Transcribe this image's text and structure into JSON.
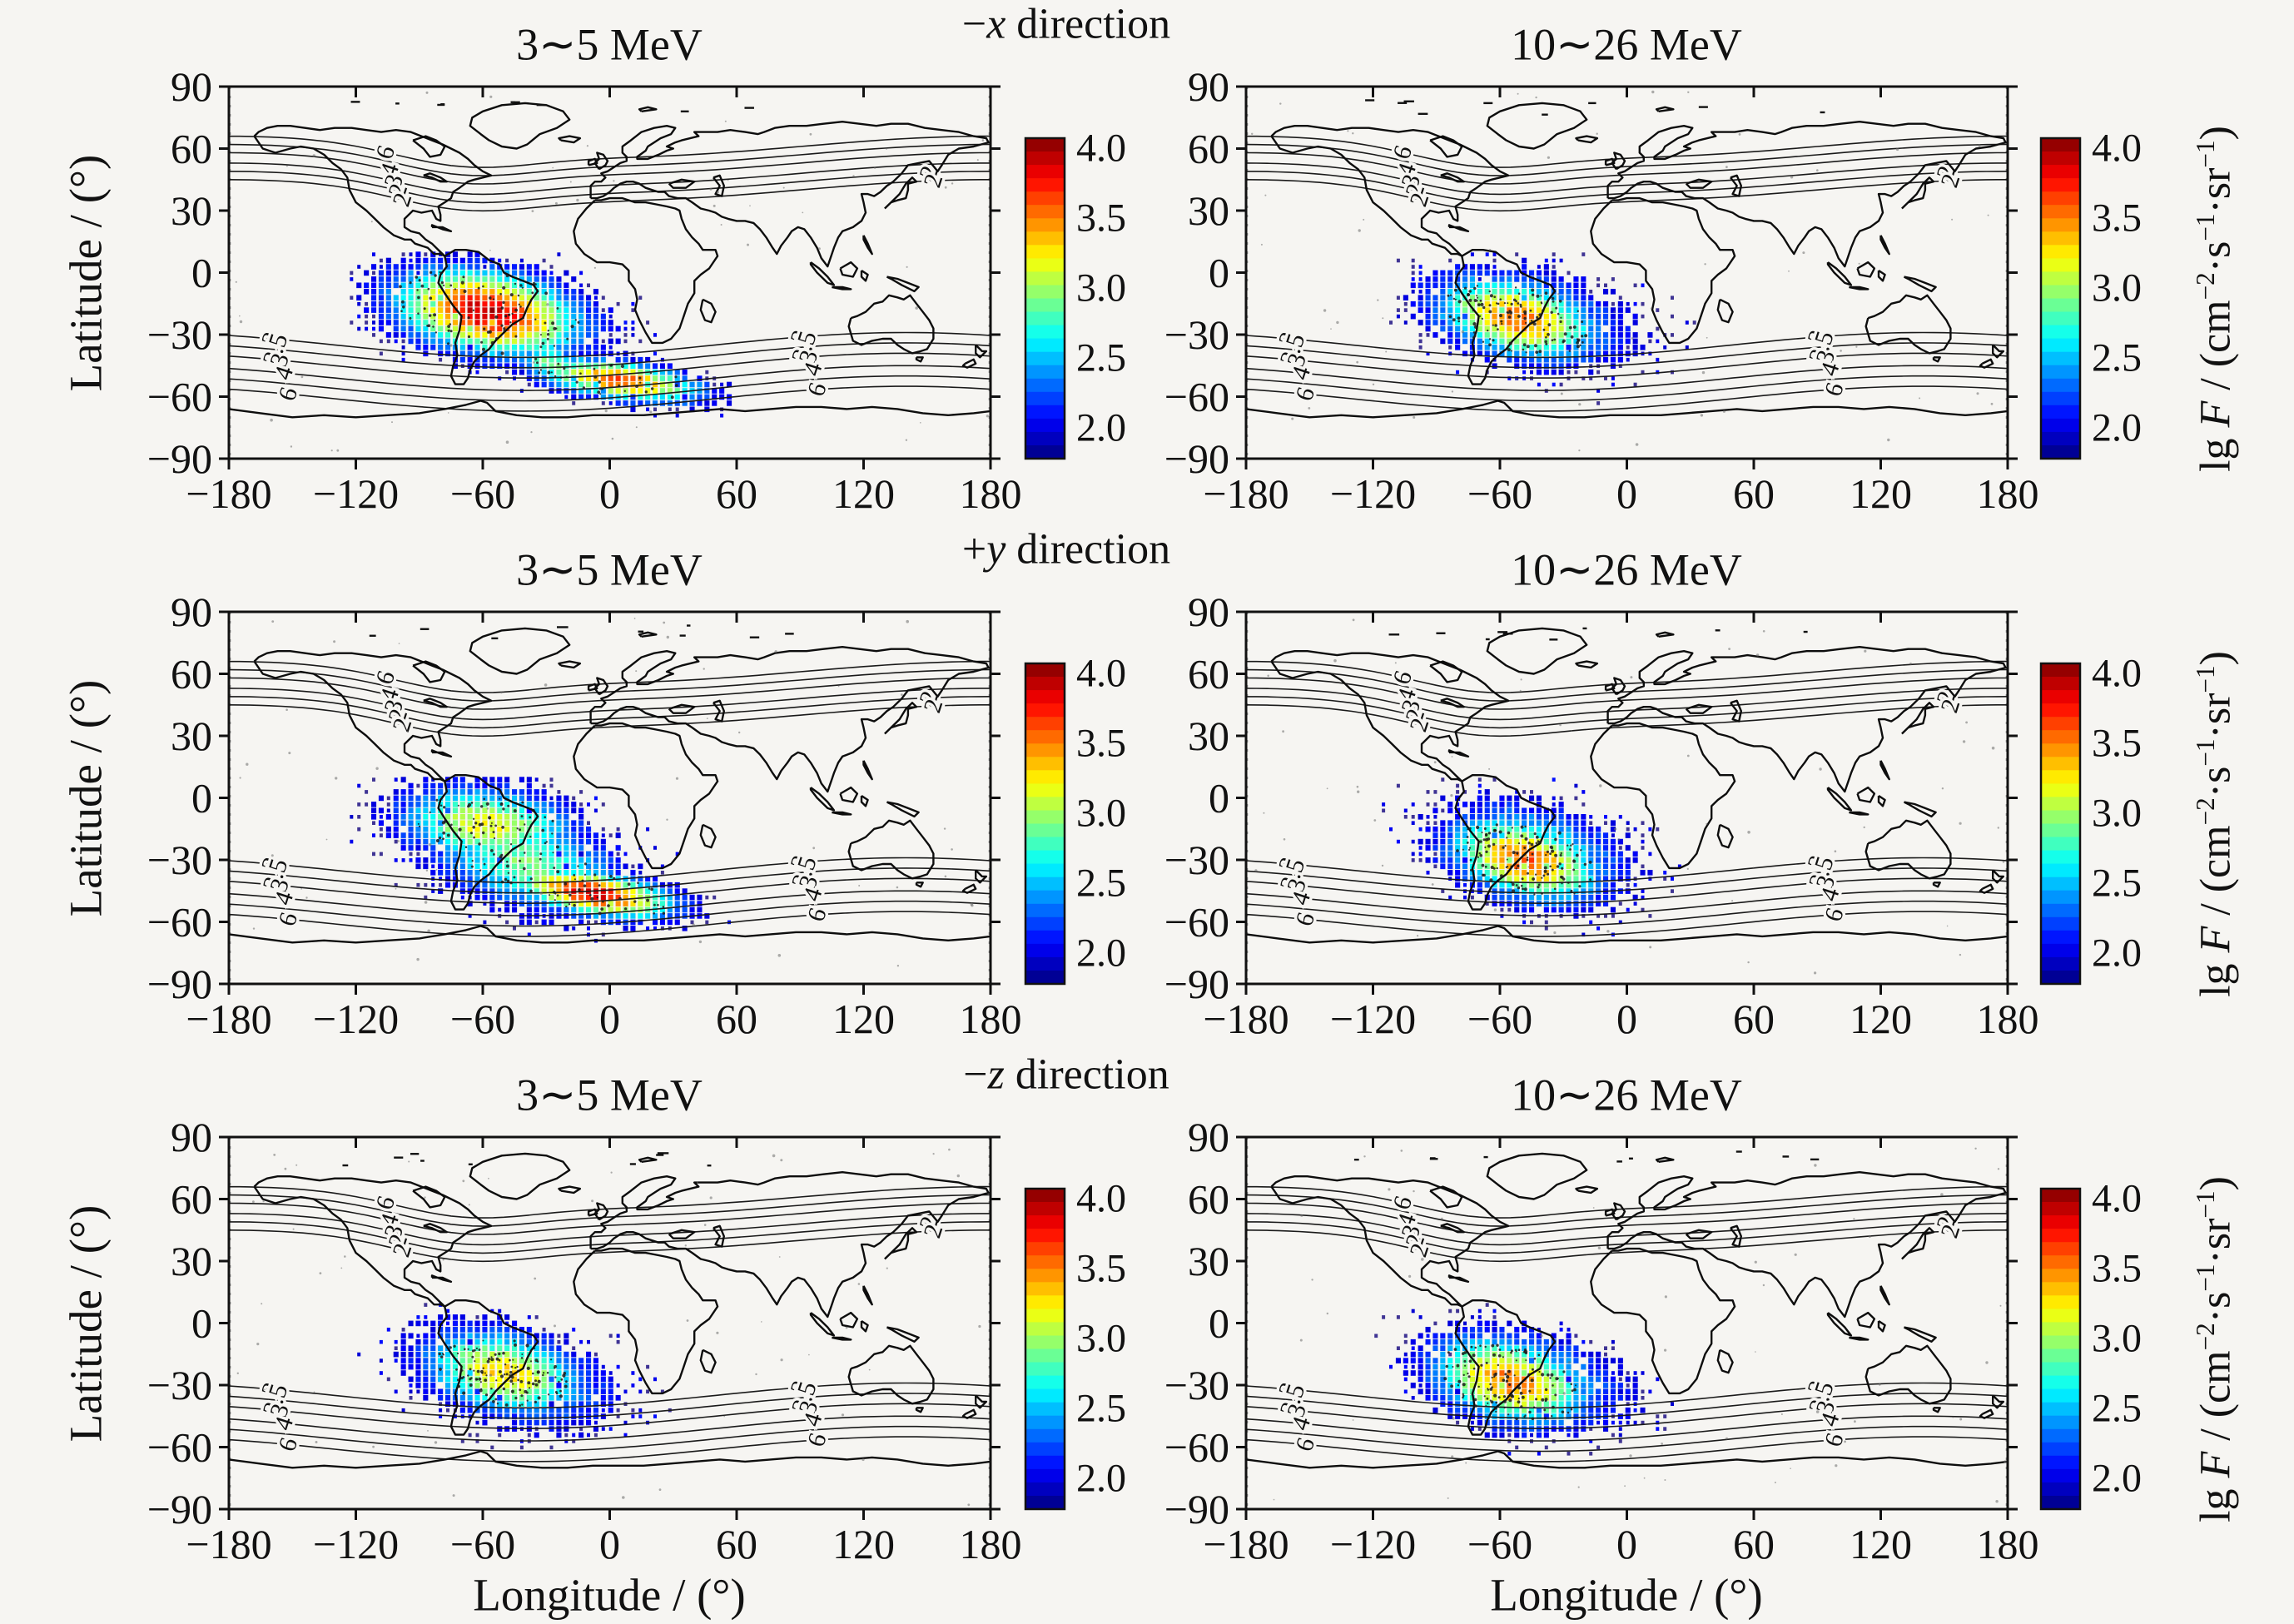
{
  "rows": [
    {
      "direction_tokens": [
        {
          "t": "−"
        },
        {
          "t": "x",
          "i": 1
        },
        {
          "t": " direction"
        }
      ],
      "panels": [
        {
          "title": "3∼5 MeV"
        },
        {
          "title": "10∼26 MeV"
        }
      ]
    },
    {
      "direction_tokens": [
        {
          "t": "+"
        },
        {
          "t": "y",
          "i": 1
        },
        {
          "t": " direction"
        }
      ],
      "panels": [
        {
          "title": "3∼5 MeV"
        },
        {
          "title": "10∼26 MeV"
        }
      ]
    },
    {
      "direction_tokens": [
        {
          "t": "−"
        },
        {
          "t": "z",
          "i": 1
        },
        {
          "t": " direction"
        }
      ],
      "panels": [
        {
          "title": "3∼5 MeV"
        },
        {
          "title": "10∼26 MeV"
        }
      ]
    }
  ],
  "axes": {
    "x_label": "Longitude / (°)",
    "y_label": "Latitude / (°)",
    "x_tick_labels": [
      "−180",
      "−120",
      "−60",
      "0",
      "60",
      "120",
      "180"
    ],
    "x_tick_values": [
      -180,
      -120,
      -60,
      0,
      60,
      120,
      180
    ],
    "y_tick_labels": [
      "90",
      "60",
      "30",
      "0",
      "−30",
      "−60",
      "−90"
    ],
    "y_tick_values": [
      90,
      60,
      30,
      0,
      -30,
      -60,
      -90
    ],
    "lon_range": [
      -180,
      180
    ],
    "lat_range": [
      -90,
      90
    ]
  },
  "colorbar": {
    "tick_labels": [
      "4.0",
      "3.5",
      "3.0",
      "2.5",
      "2.0"
    ],
    "tick_values": [
      4.0,
      3.5,
      3.0,
      2.5,
      2.0
    ],
    "drawn_range": [
      1.78,
      4.07
    ],
    "colormap": "jet",
    "top_color": "#7f0000",
    "bottom_color": "#2c2e8e",
    "unit_tokens": [
      {
        "t": "lg "
      },
      {
        "t": "F",
        "i": 1
      },
      {
        "t": " / (cm"
      },
      {
        "t": "−2",
        "sup": 1
      },
      {
        "t": "·s"
      },
      {
        "t": "−1",
        "sup": 1
      },
      {
        "t": "·sr"
      },
      {
        "t": "−1",
        "sup": 1
      },
      {
        "t": ")"
      }
    ]
  },
  "contours": {
    "south_values": [
      2,
      2.5,
      3,
      4,
      5,
      6
    ],
    "north_values": [
      6,
      5,
      4,
      3,
      2.5,
      2
    ],
    "label_sets": [
      {
        "name": "south-left",
        "lon": -160,
        "labels": [
          "2",
          "2.5",
          "3",
          "4",
          "6"
        ],
        "line_idx": [
          0,
          1,
          2,
          3,
          5
        ]
      },
      {
        "name": "south-right",
        "lon": 90,
        "labels": [
          "2",
          "2.5",
          "3",
          "4",
          "6"
        ],
        "line_idx": [
          0,
          1,
          2,
          3,
          5
        ]
      },
      {
        "name": "north-left",
        "lon": -106,
        "labels": [
          "6",
          "4",
          "3",
          "2",
          "2"
        ],
        "line_idx": [
          0,
          2,
          3,
          4,
          5
        ]
      },
      {
        "name": "north-right",
        "lon": 151,
        "labels": [
          "2",
          "2"
        ],
        "line_idx": [
          4,
          5
        ]
      }
    ]
  },
  "chart_data": [
    {
      "type": "heatmap",
      "direction": "−x direction",
      "energy": "3∼5 MeV",
      "value_label": "lg F / (cm−2·s−1·sr−1)",
      "color_range": [
        2.0,
        4.0
      ],
      "peak_lgF": 3.9,
      "seed": 101,
      "components": [
        {
          "name": "saa-main",
          "lon": -58,
          "lat": -19,
          "sigma_lon": 34,
          "sigma_lat": 15,
          "tilt": -10,
          "peak": 3.95
        },
        {
          "name": "southeast-band",
          "lon": 5,
          "lat": -52,
          "sigma_lon": 30,
          "sigma_lat": 7,
          "tilt": -8,
          "peak": 3.6
        },
        {
          "name": "bridge",
          "lon": -28,
          "lat": -44,
          "sigma_lon": 14,
          "sigma_lat": 8,
          "tilt": -25,
          "peak": 2.9
        }
      ]
    },
    {
      "type": "heatmap",
      "direction": "−x direction",
      "energy": "10∼26 MeV",
      "value_label": "lg F / (cm−2·s−1·sr−1)",
      "color_range": [
        2.0,
        4.0
      ],
      "peak_lgF": 3.5,
      "seed": 202,
      "components": [
        {
          "name": "saa-main",
          "lon": -52,
          "lat": -22,
          "sigma_lon": 30,
          "sigma_lat": 14,
          "tilt": -14,
          "peak": 3.55
        },
        {
          "name": "halo",
          "lon": -46,
          "lat": -22,
          "sigma_lon": 36,
          "sigma_lat": 17,
          "tilt": -12,
          "peak": 2.75
        }
      ]
    },
    {
      "type": "heatmap",
      "direction": "+y direction",
      "energy": "3∼5 MeV",
      "value_label": "lg F / (cm−2·s−1·sr−1)",
      "color_range": [
        2.0,
        4.0
      ],
      "peak_lgF": 3.85,
      "seed": 303,
      "components": [
        {
          "name": "upper-lobe",
          "lon": -58,
          "lat": -13,
          "sigma_lon": 32,
          "sigma_lat": 14,
          "tilt": -6,
          "peak": 3.2
        },
        {
          "name": "south-band",
          "lon": -8,
          "lat": -46,
          "sigma_lon": 30,
          "sigma_lat": 8,
          "tilt": -10,
          "peak": 3.85
        },
        {
          "name": "halo",
          "lon": -40,
          "lat": -30,
          "sigma_lon": 36,
          "sigma_lat": 18,
          "tilt": -15,
          "peak": 2.9
        }
      ]
    },
    {
      "type": "heatmap",
      "direction": "+y direction",
      "energy": "10∼26 MeV",
      "value_label": "lg F / (cm−2·s−1·sr−1)",
      "color_range": [
        2.0,
        4.0
      ],
      "peak_lgF": 3.6,
      "seed": 404,
      "components": [
        {
          "name": "saa-main",
          "lon": -48,
          "lat": -30,
          "sigma_lon": 28,
          "sigma_lat": 14,
          "tilt": -16,
          "peak": 3.6
        },
        {
          "name": "halo",
          "lon": -44,
          "lat": -26,
          "sigma_lon": 34,
          "sigma_lat": 17,
          "tilt": -14,
          "peak": 2.8
        }
      ]
    },
    {
      "type": "heatmap",
      "direction": "−z direction",
      "energy": "3∼5 MeV",
      "value_label": "lg F / (cm−2·s−1·sr−1)",
      "color_range": [
        2.0,
        4.0
      ],
      "peak_lgF": 3.3,
      "seed": 505,
      "components": [
        {
          "name": "saa-main",
          "lon": -50,
          "lat": -24,
          "sigma_lon": 30,
          "sigma_lat": 15,
          "tilt": -13,
          "peak": 3.3
        },
        {
          "name": "halo",
          "lon": -45,
          "lat": -26,
          "sigma_lon": 35,
          "sigma_lat": 17,
          "tilt": -13,
          "peak": 2.75
        }
      ]
    },
    {
      "type": "heatmap",
      "direction": "−z direction",
      "energy": "10∼26 MeV",
      "value_label": "lg F / (cm−2·s−1·sr−1)",
      "color_range": [
        2.0,
        4.0
      ],
      "peak_lgF": 3.55,
      "seed": 606,
      "components": [
        {
          "name": "saa-main",
          "lon": -55,
          "lat": -28,
          "sigma_lon": 29,
          "sigma_lat": 15,
          "tilt": -14,
          "peak": 3.55
        },
        {
          "name": "halo",
          "lon": -47,
          "lat": -26,
          "sigma_lon": 35,
          "sigma_lat": 17,
          "tilt": -13,
          "peak": 2.75
        }
      ]
    }
  ]
}
